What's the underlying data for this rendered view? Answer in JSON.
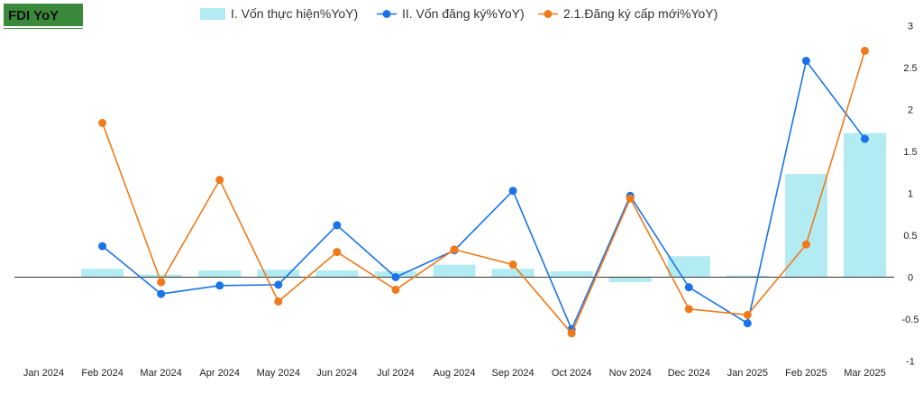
{
  "chart_data": {
    "type": "bar",
    "title": "FDI YoY",
    "categories": [
      "Jan 2024",
      "Feb 2024",
      "Mar 2024",
      "Apr 2024",
      "May 2024",
      "Jun 2024",
      "Jul 2024",
      "Aug 2024",
      "Sep 2024",
      "Oct 2024",
      "Nov 2024",
      "Dec 2024",
      "Jan 2025",
      "Feb 2025",
      "Mar 2025"
    ],
    "ylim": [
      -1,
      3
    ],
    "yticks": [
      "3",
      "2.5",
      "2",
      "1.5",
      "1",
      "0.5",
      "0",
      "-0.5",
      "-1"
    ],
    "legend_position": "top",
    "series": [
      {
        "name": "I. Vốn thực hiện%YoY)",
        "kind": "bar",
        "color": "#b2ebf2",
        "values": [
          0,
          0.1,
          0.03,
          0.08,
          0.09,
          0.08,
          0.07,
          0.15,
          0.1,
          0.07,
          -0.06,
          0.25,
          0.02,
          1.23,
          1.72
        ]
      },
      {
        "name": "II. Vốn đăng ký%YoY)",
        "kind": "line",
        "color": "#1a73e8",
        "values": [
          null,
          0.37,
          -0.2,
          -0.1,
          -0.09,
          0.62,
          0.0,
          0.32,
          1.03,
          -0.62,
          0.97,
          -0.12,
          -0.55,
          2.58,
          1.65
        ]
      },
      {
        "name": "2.1.Đăng ký cấp mới%YoY)",
        "kind": "line",
        "color": "#f07a1a",
        "values": [
          null,
          1.84,
          -0.06,
          1.16,
          -0.29,
          0.3,
          -0.15,
          0.33,
          0.15,
          -0.67,
          0.94,
          -0.38,
          -0.45,
          0.39,
          2.7
        ]
      }
    ]
  }
}
